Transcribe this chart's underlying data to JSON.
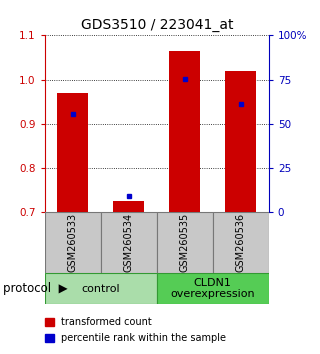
{
  "title": "GDS3510 / 223041_at",
  "samples": [
    "GSM260533",
    "GSM260534",
    "GSM260535",
    "GSM260536"
  ],
  "bar_bottoms": [
    0.7,
    0.7,
    0.7,
    0.7
  ],
  "bar_tops": [
    0.97,
    0.725,
    1.065,
    1.02
  ],
  "blue_values": [
    0.922,
    0.737,
    1.002,
    0.945
  ],
  "ylim_left": [
    0.7,
    1.1
  ],
  "ylim_right": [
    0,
    100
  ],
  "yticks_left": [
    0.7,
    0.8,
    0.9,
    1.0,
    1.1
  ],
  "yticks_right": [
    0,
    25,
    50,
    75,
    100
  ],
  "ytick_labels_right": [
    "0",
    "25",
    "50",
    "75",
    "100%"
  ],
  "bar_color": "#cc0000",
  "blue_color": "#0000cc",
  "bar_width": 0.55,
  "groups": [
    {
      "label": "control",
      "samples": [
        0,
        1
      ],
      "color": "#aaddaa"
    },
    {
      "label": "CLDN1\noverexpression",
      "samples": [
        2,
        3
      ],
      "color": "#55cc55"
    }
  ],
  "legend_items": [
    {
      "color": "#cc0000",
      "label": "transformed count"
    },
    {
      "color": "#0000cc",
      "label": "percentile rank within the sample"
    }
  ],
  "background_color": "#ffffff",
  "axis_left_color": "#cc0000",
  "axis_right_color": "#0000bb",
  "title_fontsize": 10,
  "tick_label_fontsize": 7.5,
  "sample_label_fontsize": 7,
  "group_label_fontsize": 8,
  "legend_fontsize": 7,
  "protocol_fontsize": 8.5
}
